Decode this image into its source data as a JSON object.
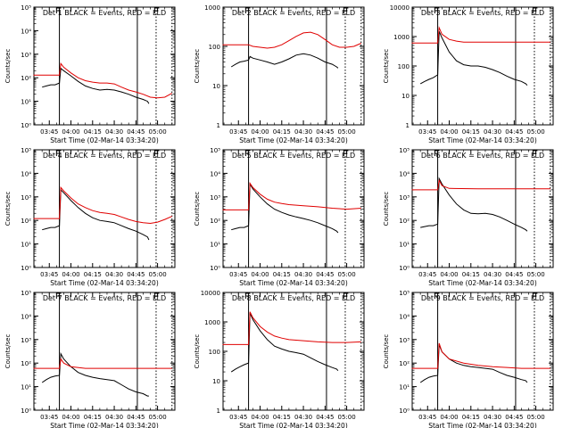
{
  "figure": {
    "xlabel": "Start Time (02-Mar-14 03:34:20)",
    "ylabel": "Counts/sec",
    "x_ticks": [
      "03:45",
      "04:00",
      "04:15",
      "04:30",
      "04:45",
      "05:00"
    ]
  },
  "chart_data": [
    {
      "type": "line",
      "title": "Det 1  BLACK = Events, RED = LLD",
      "yscale": "log",
      "ylim": [
        1,
        100000
      ],
      "yticks": [
        "10⁰",
        "10¹",
        "10²",
        "10³",
        "10⁴",
        "10⁵"
      ],
      "xlim": [
        "03:34:20",
        "05:12:00"
      ],
      "markers": {
        "flag_F": "03:50",
        "flag_E": "04:58",
        "solid": [
          "03:52",
          "04:46"
        ],
        "dotted": [
          "04:59",
          "05:10"
        ]
      },
      "series": [
        {
          "color": "#000000",
          "x": [
            "03:40",
            "03:43",
            "03:46",
            "03:49",
            "03:52",
            "03:53",
            "03:55",
            "04:00",
            "04:05",
            "04:10",
            "04:15",
            "04:20",
            "04:25",
            "04:30",
            "04:35",
            "04:40",
            "04:45",
            "04:50",
            "04:53",
            "04:54"
          ],
          "y": [
            40,
            45,
            50,
            50,
            60,
            250,
            200,
            120,
            70,
            45,
            35,
            30,
            32,
            30,
            25,
            20,
            15,
            12,
            10,
            8
          ]
        },
        {
          "color": "#e00000",
          "x": [
            "03:34",
            "03:40",
            "03:45",
            "03:50",
            "03:52",
            "03:53",
            "03:55",
            "04:00",
            "04:05",
            "04:10",
            "04:15",
            "04:20",
            "04:25",
            "04:30",
            "04:35",
            "04:40",
            "04:45",
            "04:50",
            "04:55",
            "05:00",
            "05:05",
            "05:10"
          ],
          "y": [
            130,
            130,
            130,
            130,
            130,
            400,
            280,
            160,
            100,
            75,
            65,
            60,
            60,
            55,
            40,
            30,
            25,
            20,
            15,
            14,
            15,
            22
          ]
        }
      ]
    },
    {
      "type": "line",
      "title": "Det 2  BLACK = Events, RED = LLD",
      "yscale": "log",
      "ylim": [
        1,
        1000
      ],
      "yticks": [
        "1",
        "10",
        "100",
        "1000"
      ],
      "xlim": [
        "03:34:20",
        "05:12:00"
      ],
      "markers": {
        "flag_F": "03:50",
        "flag_E": "04:58",
        "solid": [
          "03:52",
          "04:46"
        ],
        "dotted": [
          "04:59",
          "05:10"
        ]
      },
      "series": [
        {
          "color": "#000000",
          "x": [
            "03:40",
            "03:43",
            "03:46",
            "03:49",
            "03:52",
            "03:53",
            "03:55",
            "04:00",
            "04:05",
            "04:10",
            "04:15",
            "04:20",
            "04:25",
            "04:30",
            "04:35",
            "04:40",
            "04:45",
            "04:50",
            "04:53",
            "04:54"
          ],
          "y": [
            30,
            35,
            40,
            42,
            45,
            55,
            50,
            45,
            40,
            35,
            40,
            48,
            60,
            65,
            60,
            50,
            40,
            35,
            30,
            28
          ]
        },
        {
          "color": "#e00000",
          "x": [
            "03:34",
            "03:40",
            "03:45",
            "03:50",
            "03:52",
            "03:55",
            "04:00",
            "04:05",
            "04:10",
            "04:15",
            "04:20",
            "04:25",
            "04:30",
            "04:35",
            "04:40",
            "04:45",
            "04:50",
            "04:55",
            "05:00",
            "05:05",
            "05:10"
          ],
          "y": [
            110,
            110,
            110,
            110,
            110,
            100,
            95,
            90,
            95,
            110,
            140,
            180,
            220,
            230,
            200,
            150,
            110,
            95,
            95,
            100,
            120
          ]
        }
      ]
    },
    {
      "type": "line",
      "title": "Det 3  BLACK = Events, RED = LLD",
      "yscale": "log",
      "ylim": [
        1,
        10000
      ],
      "yticks": [
        "1",
        "10",
        "100",
        "1000",
        "10000"
      ],
      "xlim": [
        "03:34:20",
        "05:12:00"
      ],
      "markers": {
        "flag_F": "03:50",
        "flag_E": "04:58",
        "solid": [
          "03:52",
          "04:46"
        ],
        "dotted": [
          "04:59",
          "05:10"
        ]
      },
      "series": [
        {
          "color": "#000000",
          "x": [
            "03:40",
            "03:43",
            "03:46",
            "03:49",
            "03:52",
            "03:53",
            "03:55",
            "04:00",
            "04:05",
            "04:10",
            "04:15",
            "04:20",
            "04:25",
            "04:30",
            "04:35",
            "04:40",
            "04:45",
            "04:50",
            "04:53",
            "04:54"
          ],
          "y": [
            25,
            30,
            35,
            40,
            50,
            1500,
            900,
            300,
            150,
            110,
            100,
            100,
            90,
            75,
            60,
            45,
            35,
            30,
            25,
            22
          ]
        },
        {
          "color": "#e00000",
          "x": [
            "03:34",
            "03:40",
            "03:45",
            "03:50",
            "03:52",
            "03:53",
            "03:55",
            "04:00",
            "04:05",
            "04:10",
            "04:20",
            "04:30",
            "04:40",
            "04:50",
            "05:00",
            "05:10"
          ],
          "y": [
            600,
            600,
            600,
            600,
            600,
            2000,
            1200,
            800,
            700,
            650,
            650,
            650,
            650,
            650,
            650,
            650
          ]
        }
      ]
    },
    {
      "type": "line",
      "title": "Det 4  BLACK = Events, RED = LLD",
      "yscale": "log",
      "ylim": [
        1,
        100000
      ],
      "yticks": [
        "10⁰",
        "10¹",
        "10²",
        "10³",
        "10⁴",
        "10⁵"
      ],
      "xlim": [
        "03:34:20",
        "05:12:00"
      ],
      "markers": {
        "flag_F": "03:50",
        "flag_E": "04:58",
        "solid": [
          "03:52",
          "04:46"
        ],
        "dotted": [
          "04:59",
          "05:10"
        ]
      },
      "series": [
        {
          "color": "#000000",
          "x": [
            "03:40",
            "03:43",
            "03:46",
            "03:49",
            "03:52",
            "03:53",
            "03:55",
            "04:00",
            "04:05",
            "04:10",
            "04:15",
            "04:20",
            "04:25",
            "04:30",
            "04:35",
            "04:40",
            "04:45",
            "04:50",
            "04:53",
            "04:54"
          ],
          "y": [
            40,
            45,
            50,
            50,
            60,
            2000,
            1500,
            700,
            350,
            200,
            130,
            100,
            90,
            80,
            60,
            45,
            35,
            25,
            20,
            15
          ]
        },
        {
          "color": "#e00000",
          "x": [
            "03:34",
            "03:40",
            "03:45",
            "03:50",
            "03:52",
            "03:53",
            "03:55",
            "04:00",
            "04:05",
            "04:10",
            "04:15",
            "04:20",
            "04:25",
            "04:30",
            "04:35",
            "04:40",
            "04:45",
            "04:50",
            "04:55",
            "05:00",
            "05:05",
            "05:10"
          ],
          "y": [
            120,
            120,
            120,
            120,
            120,
            2500,
            1800,
            900,
            500,
            350,
            260,
            220,
            200,
            180,
            140,
            110,
            90,
            80,
            75,
            85,
            110,
            150
          ]
        }
      ]
    },
    {
      "type": "line",
      "title": "Det 5  BLACK = Events, RED = LLD",
      "yscale": "log",
      "ylim": [
        1,
        100000
      ],
      "yticks": [
        "10⁰",
        "10¹",
        "10²",
        "10³",
        "10⁴",
        "10⁵"
      ],
      "xlim": [
        "03:34:20",
        "05:12:00"
      ],
      "markers": {
        "flag_F": "03:50",
        "flag_E": "04:58",
        "solid": [
          "03:52",
          "04:46"
        ],
        "dotted": [
          "04:59",
          "05:10"
        ]
      },
      "series": [
        {
          "color": "#000000",
          "x": [
            "03:40",
            "03:43",
            "03:46",
            "03:49",
            "03:52",
            "03:53",
            "03:55",
            "04:00",
            "04:05",
            "04:10",
            "04:15",
            "04:20",
            "04:25",
            "04:30",
            "04:35",
            "04:40",
            "04:45",
            "04:50",
            "04:53",
            "04:54"
          ],
          "y": [
            40,
            45,
            50,
            50,
            60,
            3500,
            2200,
            1000,
            500,
            300,
            220,
            170,
            140,
            120,
            100,
            80,
            60,
            45,
            35,
            30
          ]
        },
        {
          "color": "#e00000",
          "x": [
            "03:34",
            "03:40",
            "03:45",
            "03:50",
            "03:52",
            "03:53",
            "03:55",
            "04:00",
            "04:05",
            "04:10",
            "04:15",
            "04:20",
            "04:30",
            "04:40",
            "04:50",
            "05:00",
            "05:10"
          ],
          "y": [
            280,
            280,
            280,
            280,
            280,
            3800,
            2500,
            1300,
            800,
            600,
            520,
            470,
            420,
            380,
            330,
            300,
            330
          ]
        }
      ]
    },
    {
      "type": "line",
      "title": "Det 6  BLACK = Events, RED = LLD",
      "yscale": "log",
      "ylim": [
        1,
        100000
      ],
      "yticks": [
        "10⁰",
        "10¹",
        "10²",
        "10³",
        "10⁴",
        "10⁵"
      ],
      "xlim": [
        "03:34:20",
        "05:12:00"
      ],
      "markers": {
        "flag_F": "03:50",
        "flag_E": "04:58",
        "solid": [
          "03:52",
          "04:46"
        ],
        "dotted": [
          "04:59",
          "05:10"
        ]
      },
      "series": [
        {
          "color": "#000000",
          "x": [
            "03:40",
            "03:43",
            "03:46",
            "03:49",
            "03:52",
            "03:53",
            "03:55",
            "04:00",
            "04:05",
            "04:10",
            "04:15",
            "04:20",
            "04:25",
            "04:30",
            "04:35",
            "04:40",
            "04:45",
            "04:50",
            "04:53",
            "04:54"
          ],
          "y": [
            50,
            55,
            60,
            60,
            70,
            6000,
            3500,
            1200,
            500,
            280,
            200,
            190,
            200,
            180,
            140,
            100,
            70,
            50,
            40,
            35
          ]
        },
        {
          "color": "#e00000",
          "x": [
            "03:34",
            "03:40",
            "03:45",
            "03:50",
            "03:52",
            "03:53",
            "03:55",
            "04:00",
            "04:20",
            "04:40",
            "05:00",
            "05:10"
          ],
          "y": [
            2000,
            2000,
            2000,
            2000,
            2000,
            5000,
            3000,
            2300,
            2200,
            2200,
            2200,
            2200
          ]
        }
      ]
    },
    {
      "type": "line",
      "title": "Det 7  BLACK = Events, RED = LLD",
      "yscale": "log",
      "ylim": [
        1,
        100000
      ],
      "yticks": [
        "10⁰",
        "10¹",
        "10²",
        "10³",
        "10⁴",
        "10⁵"
      ],
      "xlim": [
        "03:34:20",
        "05:12:00"
      ],
      "markers": {
        "flag_F": "03:50",
        "flag_E": "04:58",
        "solid": [
          "03:52",
          "04:46"
        ],
        "dotted": [
          "04:59",
          "05:10"
        ]
      },
      "series": [
        {
          "color": "#000000",
          "x": [
            "03:40",
            "03:43",
            "03:46",
            "03:49",
            "03:52",
            "03:53",
            "03:55",
            "04:00",
            "04:05",
            "04:10",
            "04:15",
            "04:20",
            "04:25",
            "04:30",
            "04:35",
            "04:40",
            "04:45",
            "04:50",
            "04:53",
            "04:54"
          ],
          "y": [
            15,
            20,
            25,
            28,
            30,
            250,
            150,
            70,
            40,
            30,
            25,
            22,
            20,
            18,
            12,
            8,
            6,
            5,
            4,
            4
          ]
        },
        {
          "color": "#e00000",
          "x": [
            "03:34",
            "03:40",
            "03:45",
            "03:50",
            "03:52",
            "03:53",
            "03:55",
            "04:00",
            "04:10",
            "04:20",
            "04:30",
            "04:40",
            "04:50",
            "05:00",
            "05:10"
          ],
          "y": [
            60,
            60,
            60,
            60,
            60,
            150,
            100,
            70,
            60,
            60,
            60,
            60,
            60,
            60,
            60
          ]
        }
      ]
    },
    {
      "type": "line",
      "title": "Det 8  BLACK = Events, RED = LLD",
      "yscale": "log",
      "ylim": [
        1,
        10000
      ],
      "yticks": [
        "1",
        "10",
        "100",
        "1000",
        "10000"
      ],
      "xlim": [
        "03:34:20",
        "05:12:00"
      ],
      "markers": {
        "flag_F": "03:50",
        "flag_E": "04:58",
        "solid": [
          "03:52",
          "04:46"
        ],
        "dotted": [
          "04:59",
          "05:10"
        ]
      },
      "series": [
        {
          "color": "#000000",
          "x": [
            "03:40",
            "03:43",
            "03:46",
            "03:49",
            "03:52",
            "03:53",
            "03:55",
            "04:00",
            "04:05",
            "04:10",
            "04:15",
            "04:20",
            "04:25",
            "04:30",
            "04:35",
            "04:40",
            "04:45",
            "04:50",
            "04:53",
            "04:54"
          ],
          "y": [
            20,
            25,
            30,
            35,
            40,
            2000,
            1200,
            500,
            250,
            150,
            120,
            100,
            90,
            80,
            60,
            45,
            35,
            28,
            25,
            22
          ]
        },
        {
          "color": "#e00000",
          "x": [
            "03:34",
            "03:40",
            "03:45",
            "03:50",
            "03:52",
            "03:53",
            "03:55",
            "04:00",
            "04:05",
            "04:10",
            "04:15",
            "04:20",
            "04:30",
            "04:40",
            "04:50",
            "05:00",
            "05:10"
          ],
          "y": [
            170,
            170,
            170,
            170,
            170,
            2200,
            1400,
            700,
            450,
            330,
            280,
            250,
            230,
            210,
            200,
            200,
            210
          ]
        }
      ]
    },
    {
      "type": "line",
      "title": "Det 9  BLACK = Events, RED = LLD",
      "yscale": "log",
      "ylim": [
        1,
        100000
      ],
      "yticks": [
        "10⁰",
        "10¹",
        "10²",
        "10³",
        "10⁴",
        "10⁵"
      ],
      "xlim": [
        "03:34:20",
        "05:12:00"
      ],
      "markers": {
        "flag_F": "03:50",
        "flag_E": "04:58",
        "solid": [
          "03:52",
          "04:46"
        ],
        "dotted": [
          "04:59",
          "05:10"
        ]
      },
      "series": [
        {
          "color": "#000000",
          "x": [
            "03:40",
            "03:43",
            "03:46",
            "03:49",
            "03:52",
            "03:53",
            "03:55",
            "04:00",
            "04:05",
            "04:10",
            "04:15",
            "04:20",
            "04:25",
            "04:30",
            "04:35",
            "04:40",
            "04:45",
            "04:50",
            "04:53",
            "04:54"
          ],
          "y": [
            15,
            20,
            25,
            28,
            30,
            600,
            300,
            150,
            100,
            80,
            70,
            65,
            60,
            55,
            40,
            30,
            25,
            20,
            18,
            15
          ]
        },
        {
          "color": "#e00000",
          "x": [
            "03:34",
            "03:40",
            "03:45",
            "03:50",
            "03:52",
            "03:53",
            "03:55",
            "04:00",
            "04:10",
            "04:20",
            "04:30",
            "04:40",
            "04:50",
            "05:00",
            "05:10"
          ],
          "y": [
            60,
            60,
            60,
            60,
            60,
            700,
            300,
            150,
            100,
            80,
            70,
            65,
            60,
            60,
            60
          ]
        }
      ]
    }
  ]
}
